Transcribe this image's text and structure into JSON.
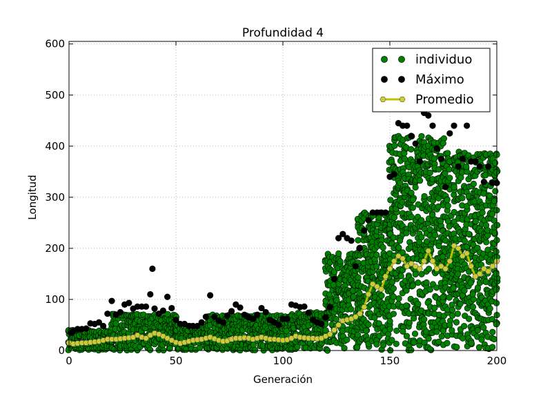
{
  "chart_data": {
    "type": "scatter",
    "title": "Profundidad 4",
    "xlabel": "Generación",
    "ylabel": "Longitud",
    "xlim": [
      0,
      200
    ],
    "ylim": [
      0,
      605
    ],
    "xticks": [
      0,
      50,
      100,
      150,
      200
    ],
    "yticks": [
      0,
      100,
      200,
      300,
      400,
      500,
      600
    ],
    "grid": true,
    "legend_position": "top-right",
    "colors": {
      "individuo": "#008000",
      "maximo": "#000000",
      "promedio_line": "#bfbf00",
      "promedio_marker": "#cccc33"
    },
    "legend": [
      {
        "label": "individuo",
        "color": "#008000",
        "style": "markers"
      },
      {
        "label": "Máximo",
        "color": "#000000",
        "style": "markers"
      },
      {
        "label": "Promedio",
        "color": "#bfbf00",
        "style": "line-hexagon"
      }
    ],
    "series": [
      {
        "name": "Máximo",
        "color": "#000000",
        "points": [
          [
            1,
            35
          ],
          [
            2,
            38
          ],
          [
            4,
            42
          ],
          [
            6,
            42
          ],
          [
            8,
            43
          ],
          [
            10,
            53
          ],
          [
            12,
            52
          ],
          [
            14,
            55
          ],
          [
            16,
            48
          ],
          [
            18,
            72
          ],
          [
            20,
            97
          ],
          [
            22,
            70
          ],
          [
            24,
            75
          ],
          [
            26,
            90
          ],
          [
            28,
            93
          ],
          [
            30,
            82
          ],
          [
            32,
            86
          ],
          [
            34,
            86
          ],
          [
            36,
            86
          ],
          [
            38,
            110
          ],
          [
            39,
            160
          ],
          [
            40,
            82
          ],
          [
            42,
            72
          ],
          [
            44,
            78
          ],
          [
            46,
            105
          ],
          [
            48,
            83
          ],
          [
            50,
            60
          ],
          [
            52,
            52
          ],
          [
            54,
            52
          ],
          [
            56,
            48
          ],
          [
            58,
            48
          ],
          [
            60,
            48
          ],
          [
            62,
            55
          ],
          [
            64,
            66
          ],
          [
            66,
            108
          ],
          [
            68,
            66
          ],
          [
            70,
            58
          ],
          [
            72,
            55
          ],
          [
            74,
            68
          ],
          [
            76,
            77
          ],
          [
            78,
            90
          ],
          [
            80,
            84
          ],
          [
            82,
            70
          ],
          [
            84,
            65
          ],
          [
            86,
            62
          ],
          [
            88,
            70
          ],
          [
            90,
            83
          ],
          [
            92,
            75
          ],
          [
            94,
            60
          ],
          [
            96,
            55
          ],
          [
            98,
            50
          ],
          [
            100,
            62
          ],
          [
            102,
            62
          ],
          [
            104,
            90
          ],
          [
            106,
            88
          ],
          [
            108,
            85
          ],
          [
            110,
            86
          ],
          [
            112,
            74
          ],
          [
            114,
            60
          ],
          [
            116,
            55
          ],
          [
            118,
            52
          ],
          [
            120,
            65
          ],
          [
            122,
            85
          ],
          [
            124,
            140
          ],
          [
            126,
            220
          ],
          [
            128,
            228
          ],
          [
            130,
            220
          ],
          [
            132,
            215
          ],
          [
            134,
            165
          ],
          [
            136,
            200
          ],
          [
            138,
            235
          ],
          [
            140,
            255
          ],
          [
            142,
            270
          ],
          [
            144,
            270
          ],
          [
            146,
            270
          ],
          [
            148,
            270
          ],
          [
            150,
            340
          ],
          [
            152,
            345
          ],
          [
            154,
            445
          ],
          [
            156,
            440
          ],
          [
            158,
            440
          ],
          [
            160,
            420
          ],
          [
            162,
            405
          ],
          [
            164,
            370
          ],
          [
            166,
            465
          ],
          [
            168,
            460
          ],
          [
            170,
            440
          ],
          [
            172,
            395
          ],
          [
            174,
            375
          ],
          [
            176,
            320
          ],
          [
            178,
            425
          ],
          [
            180,
            440
          ],
          [
            182,
            360
          ],
          [
            184,
            375
          ],
          [
            186,
            440
          ],
          [
            188,
            370
          ],
          [
            190,
            370
          ],
          [
            192,
            360
          ],
          [
            194,
            330
          ],
          [
            196,
            360
          ],
          [
            198,
            328
          ],
          [
            200,
            328
          ]
        ]
      },
      {
        "name": "Promedio",
        "color": "#bfbf00",
        "points": [
          [
            0,
            15
          ],
          [
            2,
            13
          ],
          [
            4,
            14
          ],
          [
            6,
            15
          ],
          [
            8,
            15
          ],
          [
            10,
            16
          ],
          [
            12,
            17
          ],
          [
            14,
            18
          ],
          [
            16,
            20
          ],
          [
            18,
            22
          ],
          [
            20,
            22
          ],
          [
            22,
            22
          ],
          [
            24,
            23
          ],
          [
            26,
            24
          ],
          [
            28,
            25
          ],
          [
            30,
            26
          ],
          [
            32,
            30
          ],
          [
            34,
            26
          ],
          [
            36,
            24
          ],
          [
            38,
            30
          ],
          [
            40,
            34
          ],
          [
            42,
            32
          ],
          [
            44,
            28
          ],
          [
            46,
            24
          ],
          [
            48,
            20
          ],
          [
            50,
            16
          ],
          [
            52,
            14
          ],
          [
            54,
            16
          ],
          [
            56,
            18
          ],
          [
            58,
            20
          ],
          [
            60,
            21
          ],
          [
            62,
            22
          ],
          [
            64,
            24
          ],
          [
            66,
            26
          ],
          [
            68,
            23
          ],
          [
            70,
            20
          ],
          [
            72,
            18
          ],
          [
            74,
            19
          ],
          [
            76,
            22
          ],
          [
            78,
            24
          ],
          [
            80,
            24
          ],
          [
            82,
            25
          ],
          [
            84,
            24
          ],
          [
            86,
            22
          ],
          [
            88,
            24
          ],
          [
            90,
            26
          ],
          [
            92,
            24
          ],
          [
            94,
            22
          ],
          [
            96,
            22
          ],
          [
            98,
            21
          ],
          [
            100,
            20
          ],
          [
            102,
            21
          ],
          [
            104,
            24
          ],
          [
            106,
            28
          ],
          [
            108,
            26
          ],
          [
            110,
            25
          ],
          [
            112,
            24
          ],
          [
            114,
            24
          ],
          [
            116,
            23
          ],
          [
            118,
            24
          ],
          [
            120,
            28
          ],
          [
            122,
            32
          ],
          [
            124,
            40
          ],
          [
            126,
            50
          ],
          [
            128,
            58
          ],
          [
            130,
            60
          ],
          [
            132,
            62
          ],
          [
            134,
            66
          ],
          [
            136,
            72
          ],
          [
            138,
            85
          ],
          [
            140,
            110
          ],
          [
            142,
            130
          ],
          [
            144,
            125
          ],
          [
            146,
            120
          ],
          [
            148,
            145
          ],
          [
            150,
            160
          ],
          [
            152,
            175
          ],
          [
            154,
            185
          ],
          [
            156,
            180
          ],
          [
            158,
            165
          ],
          [
            160,
            170
          ],
          [
            162,
            165
          ],
          [
            164,
            160
          ],
          [
            166,
            175
          ],
          [
            168,
            195
          ],
          [
            170,
            175
          ],
          [
            172,
            160
          ],
          [
            174,
            165
          ],
          [
            176,
            160
          ],
          [
            178,
            175
          ],
          [
            180,
            205
          ],
          [
            182,
            200
          ],
          [
            184,
            185
          ],
          [
            186,
            190
          ],
          [
            188,
            165
          ],
          [
            190,
            145
          ],
          [
            192,
            150
          ],
          [
            194,
            160
          ],
          [
            196,
            155
          ],
          [
            198,
            165
          ],
          [
            200,
            175
          ]
        ]
      }
    ],
    "individuo_bands": [
      {
        "x_range": [
          0,
          20
        ],
        "y_range": [
          0,
          40
        ],
        "density": 9,
        "name": "individuo"
      },
      {
        "x_range": [
          20,
          50
        ],
        "y_range": [
          0,
          72
        ],
        "density": 10,
        "name": "individuo"
      },
      {
        "x_range": [
          50,
          65
        ],
        "y_range": [
          0,
          50
        ],
        "density": 8,
        "name": "individuo"
      },
      {
        "x_range": [
          65,
          100
        ],
        "y_range": [
          0,
          70
        ],
        "density": 10,
        "name": "individuo"
      },
      {
        "x_range": [
          100,
          120
        ],
        "y_range": [
          0,
          75
        ],
        "density": 10,
        "name": "individuo"
      },
      {
        "x_range": [
          120,
          135
        ],
        "y_range": [
          0,
          190
        ],
        "density": 14,
        "name": "individuo"
      },
      {
        "x_range": [
          135,
          150
        ],
        "y_range": [
          0,
          270
        ],
        "density": 18,
        "name": "individuo"
      },
      {
        "x_range": [
          150,
          175
        ],
        "y_range": [
          0,
          420
        ],
        "density": 22,
        "name": "individuo"
      },
      {
        "x_range": [
          175,
          200
        ],
        "y_range": [
          0,
          390
        ],
        "density": 22,
        "name": "individuo"
      }
    ]
  }
}
